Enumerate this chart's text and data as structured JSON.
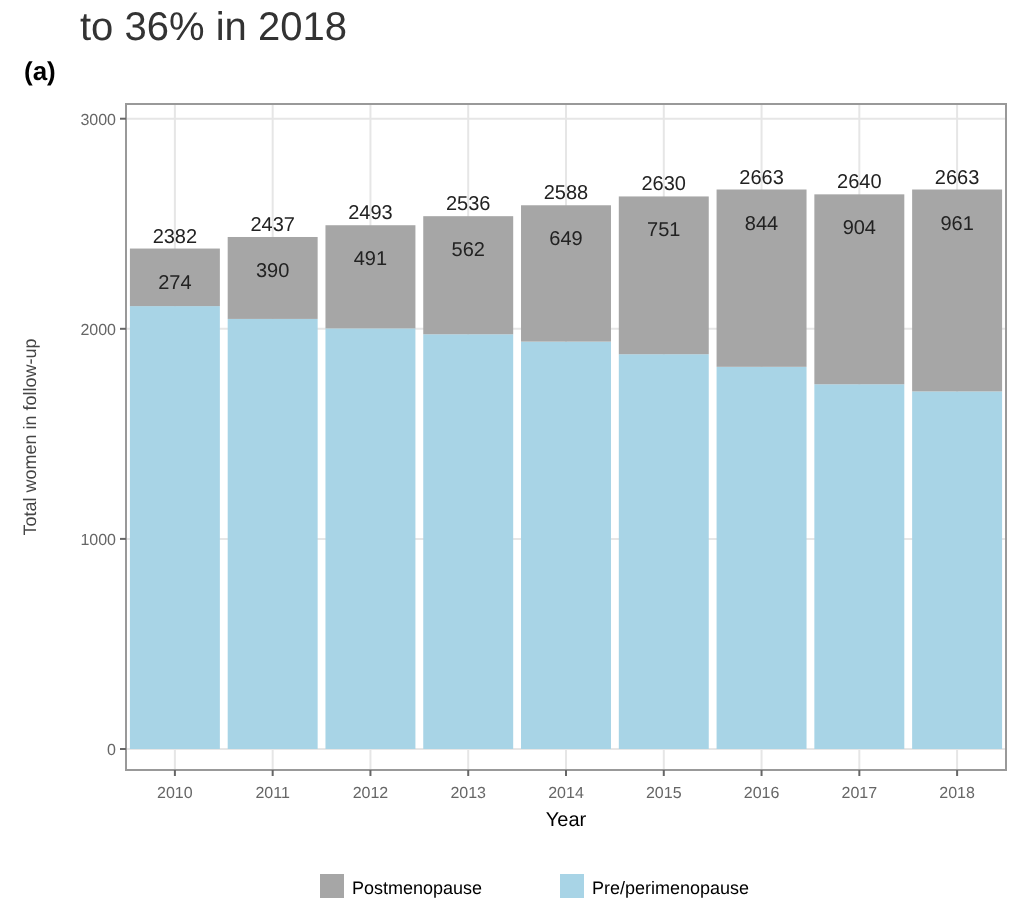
{
  "chart_data": {
    "type": "bar",
    "title": "to 36% in 2018",
    "subtitle": "(a)",
    "xlabel": "Year",
    "ylabel": "Total women in follow-up",
    "categories": [
      "2010",
      "2011",
      "2012",
      "2013",
      "2014",
      "2015",
      "2016",
      "2017",
      "2018"
    ],
    "series": [
      {
        "name": "Pre/perimenopause",
        "color": "#a8d4e6",
        "values": [
          2108,
          2047,
          2002,
          1974,
          1939,
          1879,
          1819,
          1736,
          1702
        ]
      },
      {
        "name": "Postmenopause",
        "color": "#a6a6a6",
        "values": [
          274,
          390,
          491,
          562,
          649,
          751,
          844,
          904,
          961
        ],
        "value_labels": [
          "274",
          "390",
          "491",
          "562",
          "649",
          "751",
          "844",
          "904",
          "961"
        ]
      }
    ],
    "totals": [
      "2382",
      "2437",
      "2493",
      "2536",
      "2588",
      "2630",
      "2663",
      "2640",
      "2663"
    ],
    "stacked": true,
    "ylim": [
      -100,
      3070
    ],
    "yticks": [
      0,
      1000,
      2000,
      3000
    ],
    "grid": true,
    "legend": "bottom"
  }
}
